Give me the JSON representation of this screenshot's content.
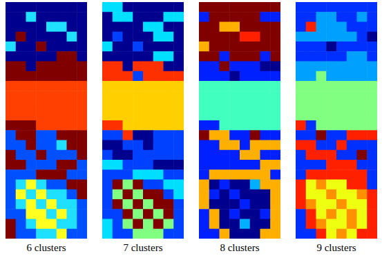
{
  "chart_data": [
    {
      "type": "heatmap",
      "title": "6 clusters",
      "tick_labels": false,
      "colors": [
        "#00008f",
        "#0050ff",
        "#20e0ff",
        "#ffff20",
        "#ff4000",
        "#800000"
      ],
      "cells": [
        [
          1,
          1,
          1,
          1,
          1,
          1,
          1,
          1
        ],
        [
          1,
          1,
          3,
          1,
          1,
          1,
          1,
          1
        ],
        [
          1,
          1,
          1,
          1,
          3,
          3,
          1,
          1
        ],
        [
          1,
          6,
          1,
          1,
          1,
          1,
          3,
          1
        ],
        [
          3,
          1,
          1,
          6,
          1,
          1,
          1,
          1
        ],
        [
          1,
          1,
          1,
          1,
          1,
          6,
          6,
          1
        ],
        [
          6,
          6,
          1,
          6,
          6,
          6,
          6,
          6
        ],
        [
          6,
          6,
          6,
          6,
          6,
          6,
          6,
          6
        ],
        [
          5,
          5,
          5,
          5,
          5,
          5,
          5,
          5
        ],
        [
          5,
          5,
          5,
          5,
          5,
          5,
          5,
          5
        ],
        [
          5,
          5,
          5,
          5,
          5,
          5,
          5,
          5
        ],
        [
          5,
          5,
          5,
          5,
          5,
          5,
          5,
          5
        ],
        [
          6,
          6,
          6,
          5,
          5,
          5,
          5,
          5
        ],
        [
          2,
          6,
          6,
          2,
          2,
          6,
          6,
          6
        ],
        [
          2,
          2,
          6,
          2,
          2,
          3,
          6,
          6
        ],
        [
          6,
          2,
          2,
          6,
          2,
          2,
          2,
          6
        ],
        [
          6,
          6,
          2,
          2,
          2,
          6,
          6,
          2
        ],
        [
          2,
          2,
          2,
          6,
          6,
          6,
          2,
          2
        ],
        [
          2,
          3,
          4,
          3,
          2,
          2,
          6,
          6
        ],
        [
          2,
          4,
          3,
          4,
          3,
          3,
          2,
          6
        ],
        [
          2,
          3,
          4,
          3,
          4,
          3,
          3,
          2
        ],
        [
          2,
          2,
          4,
          4,
          3,
          4,
          3,
          2
        ],
        [
          6,
          2,
          3,
          4,
          4,
          3,
          3,
          2
        ],
        [
          6,
          2,
          2,
          3,
          3,
          4,
          2,
          2
        ]
      ]
    },
    {
      "type": "heatmap",
      "title": "7 clusters",
      "tick_labels": false,
      "colors": [
        "#00008f",
        "#0040ff",
        "#00dfff",
        "#80ff80",
        "#ffcf00",
        "#ff3000",
        "#800000"
      ],
      "cells": [
        [
          3,
          3,
          1,
          1,
          1,
          1,
          1,
          1
        ],
        [
          1,
          3,
          3,
          1,
          1,
          1,
          3,
          3
        ],
        [
          1,
          1,
          1,
          1,
          3,
          3,
          1,
          1
        ],
        [
          1,
          2,
          1,
          1,
          1,
          3,
          3,
          1
        ],
        [
          3,
          1,
          1,
          2,
          1,
          1,
          1,
          1
        ],
        [
          1,
          1,
          1,
          1,
          1,
          3,
          3,
          1
        ],
        [
          6,
          6,
          1,
          6,
          6,
          6,
          1,
          1
        ],
        [
          6,
          6,
          6,
          2,
          6,
          6,
          6,
          6
        ],
        [
          5,
          5,
          5,
          5,
          5,
          5,
          5,
          5
        ],
        [
          5,
          5,
          5,
          5,
          5,
          5,
          5,
          5
        ],
        [
          5,
          5,
          5,
          5,
          5,
          5,
          5,
          5
        ],
        [
          5,
          5,
          5,
          5,
          5,
          5,
          5,
          5
        ],
        [
          6,
          6,
          5,
          5,
          5,
          5,
          5,
          5
        ],
        [
          2,
          2,
          6,
          1,
          1,
          2,
          2,
          2
        ],
        [
          1,
          1,
          2,
          2,
          1,
          2,
          2,
          2
        ],
        [
          2,
          1,
          1,
          2,
          2,
          2,
          2,
          2
        ],
        [
          3,
          3,
          2,
          2,
          2,
          1,
          1,
          1
        ],
        [
          2,
          2,
          2,
          3,
          3,
          3,
          2,
          2
        ],
        [
          2,
          7,
          4,
          7,
          2,
          2,
          3,
          3
        ],
        [
          2,
          4,
          7,
          4,
          7,
          7,
          2,
          3
        ],
        [
          2,
          7,
          4,
          7,
          4,
          7,
          7,
          2
        ],
        [
          2,
          2,
          7,
          4,
          7,
          4,
          7,
          2
        ],
        [
          3,
          2,
          4,
          7,
          4,
          7,
          4,
          2
        ],
        [
          3,
          2,
          2,
          4,
          4,
          4,
          2,
          2
        ]
      ]
    },
    {
      "type": "heatmap",
      "title": "8 clusters",
      "tick_labels": false,
      "colors": [
        "#00008f",
        "#0020ff",
        "#00afff",
        "#40ffbf",
        "#bfff40",
        "#ffaf00",
        "#ff2000",
        "#800000"
      ],
      "cells": [
        [
          8,
          8,
          8,
          8,
          8,
          8,
          8,
          8
        ],
        [
          2,
          8,
          8,
          8,
          8,
          8,
          2,
          2
        ],
        [
          8,
          8,
          6,
          6,
          8,
          8,
          8,
          8
        ],
        [
          8,
          8,
          8,
          8,
          7,
          7,
          8,
          8
        ],
        [
          6,
          8,
          8,
          8,
          8,
          8,
          8,
          8
        ],
        [
          8,
          8,
          2,
          8,
          8,
          8,
          2,
          8
        ],
        [
          2,
          2,
          8,
          2,
          2,
          2,
          1,
          1
        ],
        [
          2,
          2,
          2,
          1,
          2,
          2,
          2,
          2
        ],
        [
          4,
          4,
          4,
          4,
          4,
          4,
          4,
          4
        ],
        [
          4,
          4,
          4,
          4,
          4,
          4,
          4,
          4
        ],
        [
          4,
          4,
          4,
          4,
          4,
          4,
          4,
          4
        ],
        [
          4,
          4,
          4,
          4,
          4,
          4,
          4,
          4
        ],
        [
          2,
          2,
          4,
          4,
          4,
          4,
          4,
          4
        ],
        [
          8,
          6,
          6,
          2,
          2,
          8,
          2,
          2
        ],
        [
          2,
          2,
          6,
          6,
          2,
          6,
          6,
          6
        ],
        [
          2,
          2,
          2,
          2,
          6,
          6,
          2,
          2
        ],
        [
          2,
          2,
          2,
          2,
          2,
          2,
          6,
          6
        ],
        [
          2,
          6,
          6,
          6,
          6,
          6,
          6,
          2
        ],
        [
          6,
          1,
          2,
          1,
          1,
          3,
          6,
          6
        ],
        [
          6,
          2,
          1,
          2,
          1,
          1,
          1,
          6
        ],
        [
          6,
          1,
          1,
          1,
          2,
          1,
          1,
          6
        ],
        [
          2,
          6,
          1,
          2,
          1,
          1,
          2,
          6
        ],
        [
          2,
          6,
          1,
          1,
          3,
          1,
          1,
          6
        ],
        [
          2,
          2,
          6,
          1,
          1,
          1,
          6,
          6
        ]
      ]
    },
    {
      "type": "heatmap",
      "title": "9 clusters",
      "tick_labels": false,
      "colors": [
        "#00008f",
        "#0030ff",
        "#00a0ff",
        "#10ffef",
        "#80ff80",
        "#efff10",
        "#ff9000",
        "#ff2000",
        "#800000"
      ],
      "cells": [
        [
          2,
          2,
          2,
          2,
          2,
          2,
          2,
          2
        ],
        [
          2,
          2,
          3,
          3,
          2,
          2,
          3,
          2
        ],
        [
          2,
          8,
          3,
          3,
          3,
          2,
          2,
          2
        ],
        [
          3,
          3,
          3,
          3,
          3,
          3,
          2,
          1
        ],
        [
          2,
          2,
          2,
          1,
          2,
          2,
          2,
          2
        ],
        [
          2,
          2,
          2,
          2,
          2,
          3,
          3,
          2
        ],
        [
          3,
          3,
          3,
          3,
          3,
          3,
          3,
          3
        ],
        [
          3,
          3,
          5,
          3,
          3,
          3,
          3,
          3
        ],
        [
          5,
          5,
          5,
          5,
          5,
          5,
          5,
          5
        ],
        [
          5,
          5,
          5,
          5,
          5,
          5,
          5,
          5
        ],
        [
          5,
          5,
          5,
          5,
          5,
          5,
          5,
          5
        ],
        [
          5,
          5,
          5,
          5,
          5,
          5,
          5,
          5
        ],
        [
          8,
          2,
          5,
          5,
          5,
          5,
          5,
          5
        ],
        [
          2,
          2,
          9,
          2,
          2,
          8,
          8,
          8
        ],
        [
          8,
          8,
          2,
          2,
          8,
          2,
          2,
          2
        ],
        [
          2,
          8,
          8,
          8,
          2,
          2,
          9,
          2
        ],
        [
          2,
          2,
          2,
          8,
          8,
          8,
          2,
          2
        ],
        [
          2,
          8,
          8,
          8,
          8,
          8,
          8,
          2
        ],
        [
          8,
          6,
          7,
          6,
          6,
          8,
          8,
          2
        ],
        [
          8,
          6,
          6,
          7,
          6,
          6,
          7,
          8
        ],
        [
          8,
          7,
          6,
          6,
          7,
          6,
          6,
          8
        ],
        [
          2,
          8,
          6,
          7,
          6,
          7,
          6,
          8
        ],
        [
          2,
          8,
          7,
          6,
          6,
          7,
          6,
          8
        ],
        [
          2,
          2,
          8,
          6,
          7,
          6,
          8,
          8
        ]
      ]
    }
  ]
}
